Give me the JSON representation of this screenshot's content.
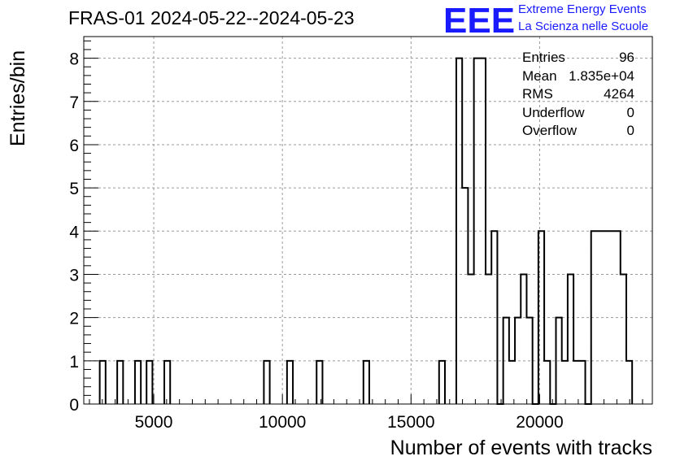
{
  "header": {
    "title": "FRAS-01 2024-05-22--2024-05-23",
    "logo_text": "EEE",
    "tagline1": "Extreme Energy Events",
    "tagline2": "La Scienza nelle Scuole"
  },
  "stats": [
    {
      "name": "Entries",
      "value": "96"
    },
    {
      "name": "Mean",
      "value": "1.835e+04"
    },
    {
      "name": "RMS",
      "value": "4264"
    },
    {
      "name": "Underflow",
      "value": "0"
    },
    {
      "name": "Overflow",
      "value": "0"
    }
  ],
  "colors": {
    "accent": "#1a1aff",
    "line": "#000000",
    "grid": "#9a9a9a"
  },
  "chart_data": {
    "type": "histogram",
    "title": "FRAS-01 2024-05-22--2024-05-23",
    "xlabel": "Number of events with tracks",
    "ylabel": "Entries/bin",
    "xlim": [
      2280,
      24380
    ],
    "ylim": [
      0,
      8.5
    ],
    "bin_width": 227.8,
    "x_ticks": [
      5000,
      10000,
      15000,
      20000
    ],
    "y_ticks": [
      0,
      1,
      2,
      3,
      4,
      5,
      6,
      7,
      8
    ],
    "grid": true,
    "bins": [
      {
        "start": 2900,
        "count": 1
      },
      {
        "start": 3580,
        "count": 1
      },
      {
        "start": 4270,
        "count": 1
      },
      {
        "start": 4720,
        "count": 1
      },
      {
        "start": 5410,
        "count": 1
      },
      {
        "start": 9280,
        "count": 1
      },
      {
        "start": 10180,
        "count": 1
      },
      {
        "start": 11330,
        "count": 1
      },
      {
        "start": 13150,
        "count": 1
      },
      {
        "start": 16090,
        "count": 1
      },
      {
        "start": 16760,
        "count": 8
      },
      {
        "start": 16988,
        "count": 5
      },
      {
        "start": 17216,
        "count": 3
      },
      {
        "start": 17444,
        "count": 8
      },
      {
        "start": 17672,
        "count": 8
      },
      {
        "start": 17899,
        "count": 3
      },
      {
        "start": 18127,
        "count": 4
      },
      {
        "start": 18355,
        "count": 0
      },
      {
        "start": 18583,
        "count": 2
      },
      {
        "start": 18811,
        "count": 1
      },
      {
        "start": 19039,
        "count": 2
      },
      {
        "start": 19266,
        "count": 3
      },
      {
        "start": 19494,
        "count": 2
      },
      {
        "start": 19722,
        "count": 0
      },
      {
        "start": 19950,
        "count": 4
      },
      {
        "start": 20178,
        "count": 1
      },
      {
        "start": 20406,
        "count": 0
      },
      {
        "start": 20633,
        "count": 2
      },
      {
        "start": 20861,
        "count": 1
      },
      {
        "start": 21089,
        "count": 3
      },
      {
        "start": 21317,
        "count": 1
      },
      {
        "start": 21545,
        "count": 1
      },
      {
        "start": 21773,
        "count": 0
      },
      {
        "start": 22000,
        "count": 4
      },
      {
        "start": 22228,
        "count": 4
      },
      {
        "start": 22456,
        "count": 4
      },
      {
        "start": 22684,
        "count": 4
      },
      {
        "start": 22912,
        "count": 4
      },
      {
        "start": 23140,
        "count": 3
      },
      {
        "start": 23367,
        "count": 1
      }
    ]
  }
}
